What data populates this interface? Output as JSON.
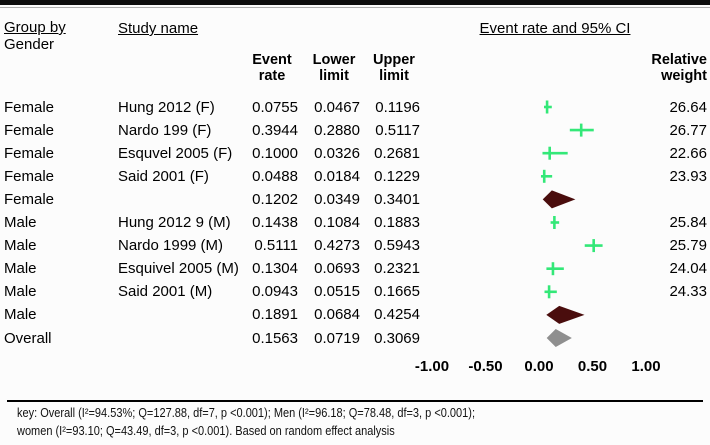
{
  "header": {
    "group_by_label": "Group by",
    "group_by_value": "Gender",
    "study_name_label": "Study name",
    "plot_title": "Event rate and 95% CI",
    "cols": {
      "event": "Event\nrate",
      "lower": "Lower\nlimit",
      "upper": "Upper\nlimit",
      "weight": "Relative\nweight"
    }
  },
  "colors": {
    "marker_green": "#33e878",
    "summary_maroon": "#4a0d0d",
    "overall_gray": "#8f8f8f",
    "top_bar_black": "#0d0d0d"
  },
  "footer": {
    "line1": "key: Overall (I²=94.53%; Q=127.88, df=7, p <0.001); Men (I²=96.18; Q=78.48, df=3, p <0.001);",
    "line2": "women (I²=93.10; Q=43.49, df=3, p <0.001). Based on random effect analysis"
  },
  "chart_data": {
    "type": "scatter",
    "subtype": "forest-plot",
    "title": "Event rate and 95% CI",
    "group_by": "Gender",
    "xlabel": "Event rate",
    "xlim": [
      -1.0,
      1.0
    ],
    "grid": false,
    "x_ticks": [
      {
        "value": -1.0,
        "label": "-1.00"
      },
      {
        "value": -0.5,
        "label": "-0.50"
      },
      {
        "value": 0.0,
        "label": "0.00"
      },
      {
        "value": 0.5,
        "label": "0.50"
      },
      {
        "value": 1.0,
        "label": "1.00"
      }
    ],
    "rows": [
      {
        "kind": "study",
        "group": "Female",
        "study": "Hung 2012 (F)",
        "event_rate": 0.0755,
        "lower": 0.0467,
        "upper": 0.1196,
        "weight": 26.64
      },
      {
        "kind": "study",
        "group": "Female",
        "study": "Nardo 199 (F)",
        "event_rate": 0.3944,
        "lower": 0.288,
        "upper": 0.5117,
        "weight": 26.77
      },
      {
        "kind": "study",
        "group": "Female",
        "study": "Esquvel 2005 (F)",
        "event_rate": 0.1,
        "lower": 0.0326,
        "upper": 0.2681,
        "weight": 22.66
      },
      {
        "kind": "study",
        "group": "Female",
        "study": "Said 2001 (F)",
        "event_rate": 0.0488,
        "lower": 0.0184,
        "upper": 0.1229,
        "weight": 23.93
      },
      {
        "kind": "summary",
        "group": "Female",
        "study": "",
        "event_rate": 0.1202,
        "lower": 0.0349,
        "upper": 0.3401,
        "weight": null
      },
      {
        "kind": "study",
        "group": "Male",
        "study": "Hung 2012 9 (M)",
        "event_rate": 0.1438,
        "lower": 0.1084,
        "upper": 0.1883,
        "weight": 25.84
      },
      {
        "kind": "study",
        "group": "Male",
        "study": "Nardo 1999 (M)",
        "event_rate": 0.5111,
        "lower": 0.4273,
        "upper": 0.5943,
        "weight": 25.79
      },
      {
        "kind": "study",
        "group": "Male",
        "study": "Esquivel 2005 (M)",
        "event_rate": 0.1304,
        "lower": 0.0693,
        "upper": 0.2321,
        "weight": 24.04
      },
      {
        "kind": "study",
        "group": "Male",
        "study": "Said 2001 (M)",
        "event_rate": 0.0943,
        "lower": 0.0515,
        "upper": 0.1665,
        "weight": 24.33
      },
      {
        "kind": "summary",
        "group": "Male",
        "study": "",
        "event_rate": 0.1891,
        "lower": 0.0684,
        "upper": 0.4254,
        "weight": null
      },
      {
        "kind": "overall",
        "group": "Overall",
        "study": "",
        "event_rate": 0.1563,
        "lower": 0.0719,
        "upper": 0.3069,
        "weight": null
      }
    ]
  }
}
